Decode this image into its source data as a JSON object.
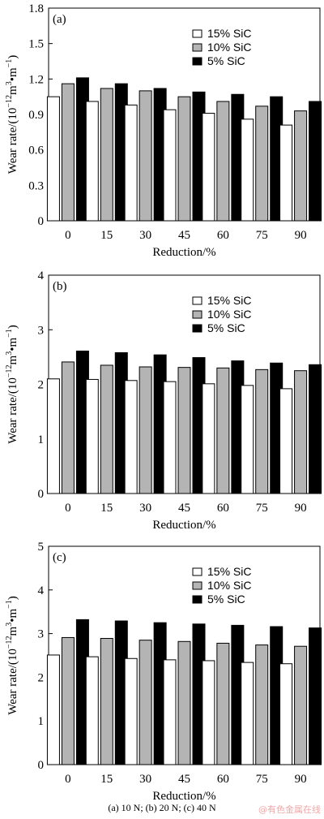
{
  "chart_data": [
    {
      "type": "bar",
      "panel_label": "(a)",
      "categories": [
        "0",
        "15",
        "30",
        "45",
        "60",
        "75",
        "90"
      ],
      "series": [
        {
          "name": "15% SiC",
          "fill": "#ffffff",
          "values": [
            1.05,
            1.01,
            0.98,
            0.94,
            0.91,
            0.86,
            0.81
          ]
        },
        {
          "name": "10% SiC",
          "fill": "#b4b4b4",
          "values": [
            1.16,
            1.12,
            1.1,
            1.05,
            1.01,
            0.97,
            0.93
          ]
        },
        {
          "name": "5% SiC",
          "fill": "#000000",
          "values": [
            1.21,
            1.16,
            1.12,
            1.09,
            1.07,
            1.05,
            1.01
          ]
        }
      ],
      "ylim": [
        0,
        1.8
      ],
      "yticks": [
        "0",
        "0.3",
        "0.6",
        "0.9",
        "1.2",
        "1.5",
        "1.8"
      ],
      "xlabel": "Reduction/%",
      "ylabel_main": "Wear rate/(10",
      "ylabel_exp1": "−12",
      "ylabel_mid": "m",
      "ylabel_exp2": "3",
      "ylabel_dot": "•m",
      "ylabel_exp3": "−1",
      "ylabel_end": ")",
      "legend_position": "top-right",
      "grid": false
    },
    {
      "type": "bar",
      "panel_label": "(b)",
      "categories": [
        "0",
        "15",
        "30",
        "45",
        "60",
        "75",
        "90"
      ],
      "series": [
        {
          "name": "15% SiC",
          "fill": "#ffffff",
          "values": [
            2.1,
            2.09,
            2.07,
            2.05,
            2.01,
            1.98,
            1.92
          ]
        },
        {
          "name": "10% SiC",
          "fill": "#b4b4b4",
          "values": [
            2.41,
            2.35,
            2.32,
            2.31,
            2.3,
            2.27,
            2.25
          ]
        },
        {
          "name": "5% SiC",
          "fill": "#000000",
          "values": [
            2.61,
            2.58,
            2.54,
            2.49,
            2.43,
            2.39,
            2.36
          ]
        }
      ],
      "ylim": [
        0,
        4
      ],
      "yticks": [
        "0",
        "1",
        "2",
        "3",
        "4"
      ],
      "xlabel": "Reduction/%",
      "ylabel_main": "Wear rate/(10",
      "ylabel_exp1": "−12",
      "ylabel_mid": "m",
      "ylabel_exp2": "3",
      "ylabel_dot": "•m",
      "ylabel_exp3": "−1",
      "ylabel_end": ")",
      "legend_position": "top-right",
      "grid": false
    },
    {
      "type": "bar",
      "panel_label": "(c)",
      "categories": [
        "0",
        "15",
        "30",
        "45",
        "60",
        "75",
        "90"
      ],
      "series": [
        {
          "name": "15% SiC",
          "fill": "#ffffff",
          "values": [
            2.51,
            2.47,
            2.43,
            2.4,
            2.38,
            2.34,
            2.31
          ]
        },
        {
          "name": "10% SiC",
          "fill": "#b4b4b4",
          "values": [
            2.91,
            2.89,
            2.85,
            2.82,
            2.78,
            2.74,
            2.71
          ]
        },
        {
          "name": "5% SiC",
          "fill": "#000000",
          "values": [
            3.32,
            3.29,
            3.25,
            3.22,
            3.19,
            3.16,
            3.13
          ]
        }
      ],
      "ylim": [
        0,
        5
      ],
      "yticks": [
        "0",
        "1",
        "2",
        "3",
        "4",
        "5"
      ],
      "xlabel": "Reduction/%",
      "ylabel_main": "Wear rate/(10",
      "ylabel_exp1": "−12",
      "ylabel_mid": "m",
      "ylabel_exp2": "3",
      "ylabel_dot": "•m",
      "ylabel_exp3": "−1",
      "ylabel_end": ")",
      "legend_position": "top-right",
      "grid": false
    }
  ],
  "caption": "(a) 10 N; (b) 20 N; (c) 40 N",
  "watermark": "@有色金属在线"
}
